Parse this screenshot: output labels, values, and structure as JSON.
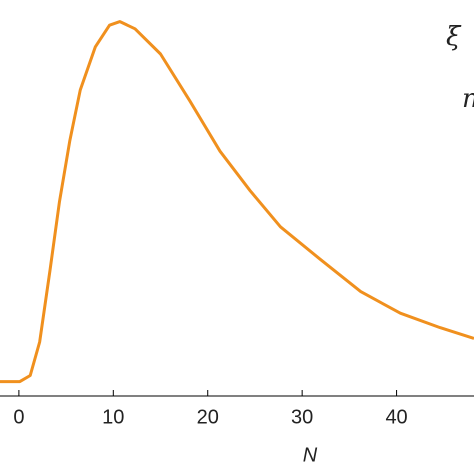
{
  "chart_data": {
    "type": "line",
    "x_label": "N",
    "annotations": [
      "ξ",
      "n"
    ],
    "x": [
      -2,
      0.1,
      1.2,
      2.2,
      3.3,
      4.3,
      5.4,
      6.5,
      8.1,
      9.6,
      10.7,
      12.3,
      15,
      18.1,
      21.3,
      24.5,
      27.7,
      31.9,
      36.2,
      40.4,
      44.6,
      48.2
    ],
    "series": [
      {
        "color": "#f0901e",
        "values": [
          0,
          0,
          0.017,
          0.11,
          0.31,
          0.5,
          0.67,
          0.81,
          0.93,
          0.99,
          1.0,
          0.98,
          0.91,
          0.78,
          0.64,
          0.53,
          0.43,
          0.34,
          0.25,
          0.19,
          0.15,
          0.12
        ]
      }
    ],
    "xlim": [
      -2,
      48.2
    ],
    "ylim": [
      -0.04,
      1.06
    ],
    "xticks": [
      0,
      10,
      20,
      30,
      40
    ]
  }
}
